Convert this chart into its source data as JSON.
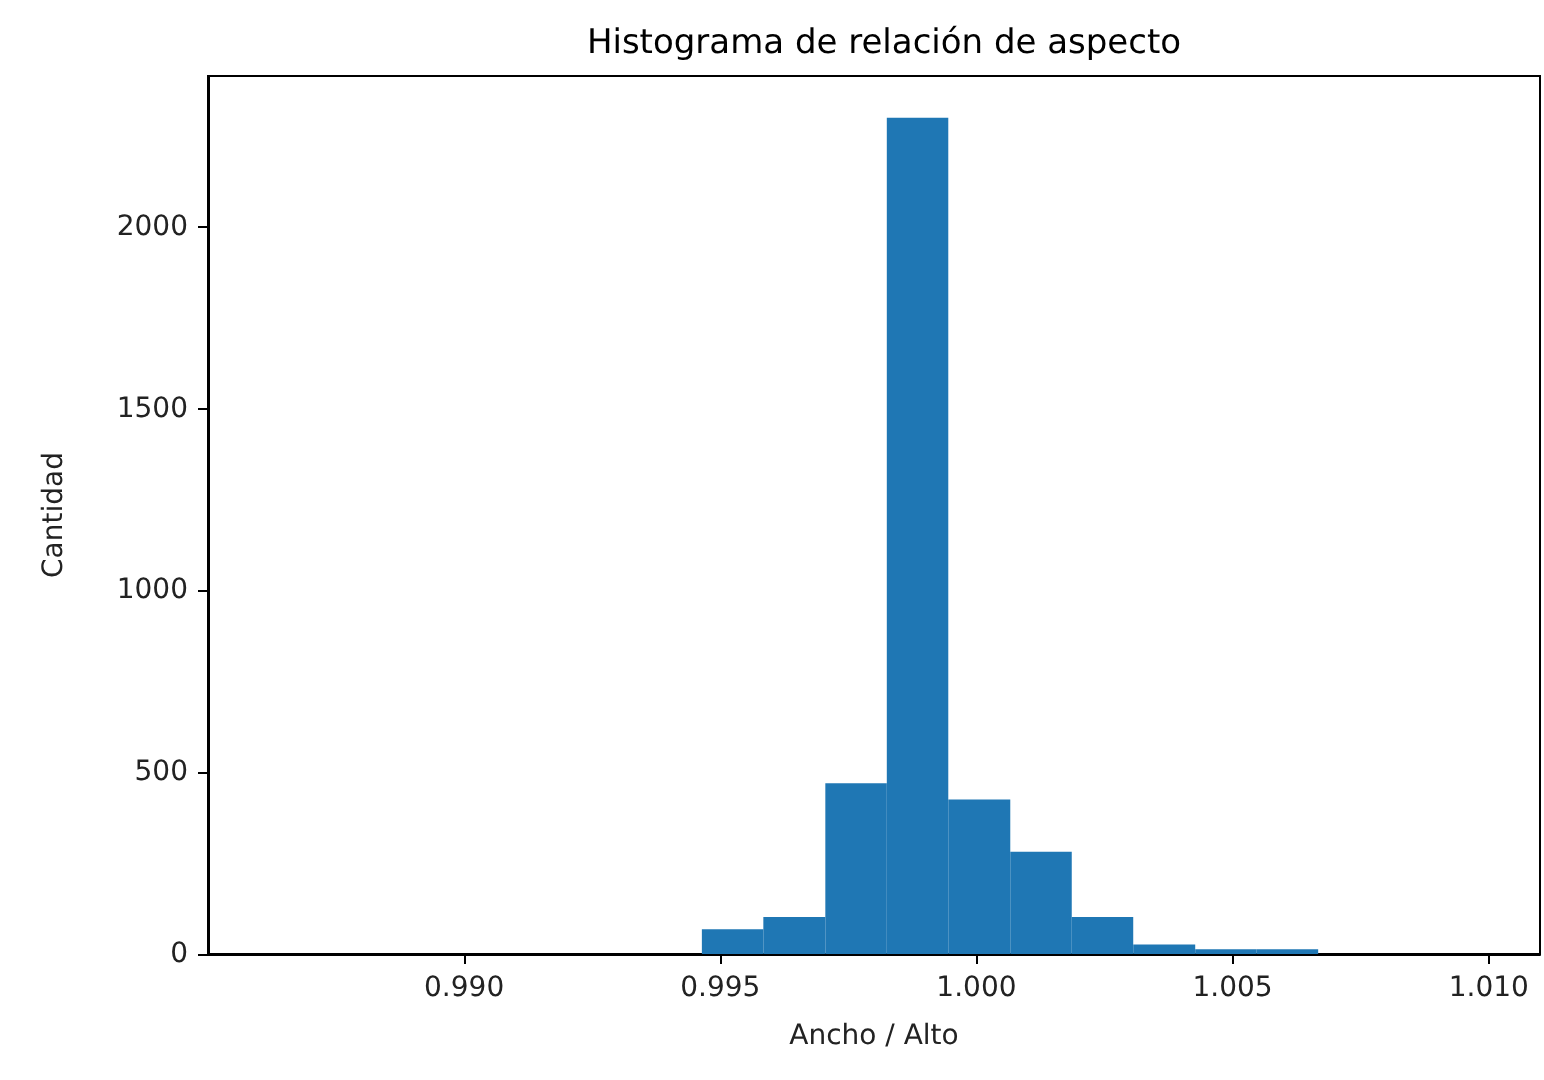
{
  "chart_data": {
    "type": "histogram",
    "title": "Histograma de relación de aspecto",
    "xlabel": "Ancho / Alto",
    "ylabel": "Cantidad",
    "bins": [
      0.99464,
      0.99584,
      0.99705,
      0.99825,
      0.99945,
      1.00066,
      1.00186,
      1.00306,
      1.00427,
      1.00547,
      1.00667
    ],
    "values": [
      68,
      102,
      470,
      2300,
      425,
      281,
      102,
      26,
      13,
      13
    ],
    "color": "#1f77b4",
    "xlim": [
      0.985,
      1.011
    ],
    "ylim": [
      0,
      2415
    ],
    "xticks": [
      {
        "value": 0.99,
        "label": "0.990"
      },
      {
        "value": 0.995,
        "label": "0.995"
      },
      {
        "value": 1.0,
        "label": "1.000"
      },
      {
        "value": 1.005,
        "label": "1.005"
      },
      {
        "value": 1.01,
        "label": "1.010"
      }
    ],
    "yticks": [
      0,
      500,
      1000,
      1500,
      2000
    ],
    "grid": false
  }
}
